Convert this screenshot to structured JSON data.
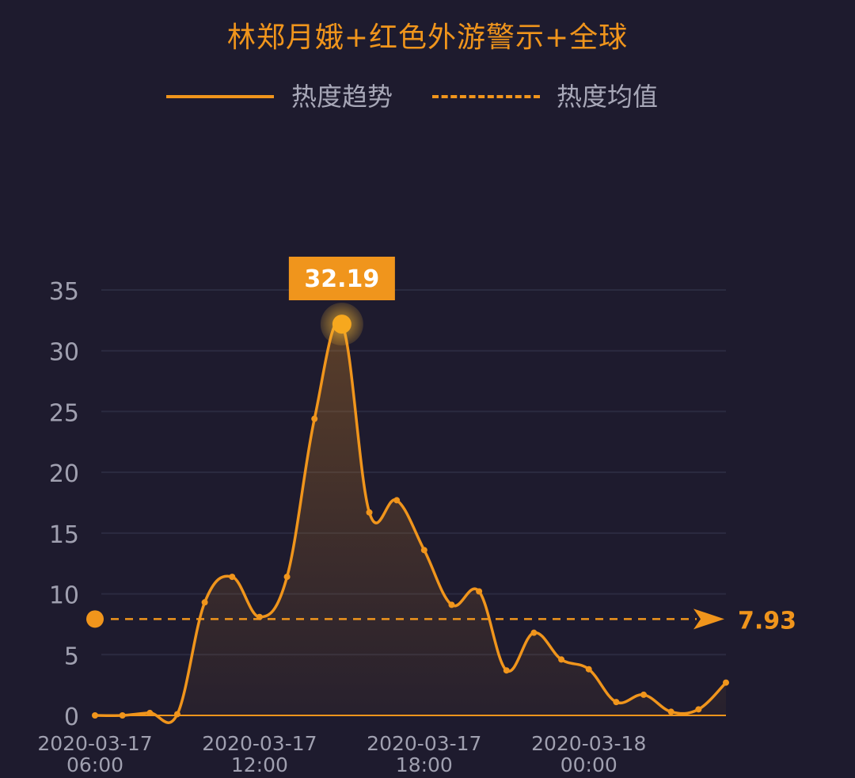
{
  "chart_data": {
    "type": "area",
    "title": "林郑月娥+红色外游警示+全球",
    "series": [
      {
        "name": "热度趋势",
        "color": "#f0951c",
        "x": [
          "2020-03-17 06:00",
          "2020-03-17 07:00",
          "2020-03-17 08:00",
          "2020-03-17 09:00",
          "2020-03-17 10:00",
          "2020-03-17 11:00",
          "2020-03-17 12:00",
          "2020-03-17 13:00",
          "2020-03-17 14:00",
          "2020-03-17 15:00",
          "2020-03-17 16:00",
          "2020-03-17 17:00",
          "2020-03-17 18:00",
          "2020-03-17 19:00",
          "2020-03-17 20:00",
          "2020-03-17 21:00",
          "2020-03-17 22:00",
          "2020-03-17 23:00",
          "2020-03-18 00:00",
          "2020-03-18 01:00",
          "2020-03-18 02:00",
          "2020-03-18 03:00",
          "2020-03-18 04:00",
          "2020-03-18 05:00"
        ],
        "values": [
          0,
          0,
          0.2,
          0.1,
          9.3,
          11.4,
          8.1,
          11.4,
          24.4,
          32.19,
          16.7,
          17.7,
          13.6,
          9.1,
          10.2,
          3.7,
          6.8,
          4.6,
          3.8,
          1.1,
          1.7,
          0.3,
          0.5,
          2.7
        ]
      },
      {
        "name": "热度均值",
        "value": 7.93,
        "style": "dashed",
        "color": "#f0951c"
      }
    ],
    "x_tick_labels": [
      {
        "date": "2020-03-17",
        "time": "06:00",
        "x": "2020-03-17 06:00"
      },
      {
        "date": "2020-03-17",
        "time": "12:00",
        "x": "2020-03-17 12:00"
      },
      {
        "date": "2020-03-17",
        "time": "18:00",
        "x": "2020-03-17 18:00"
      },
      {
        "date": "2020-03-18",
        "time": "00:00",
        "x": "2020-03-18 00:00"
      }
    ],
    "yticks": [
      0,
      5,
      10,
      15,
      20,
      25,
      30,
      35
    ],
    "ylim": [
      0,
      35
    ],
    "grid": true,
    "legend_position": "top-center",
    "max_label": "32.19",
    "mean_label": "7.93"
  }
}
